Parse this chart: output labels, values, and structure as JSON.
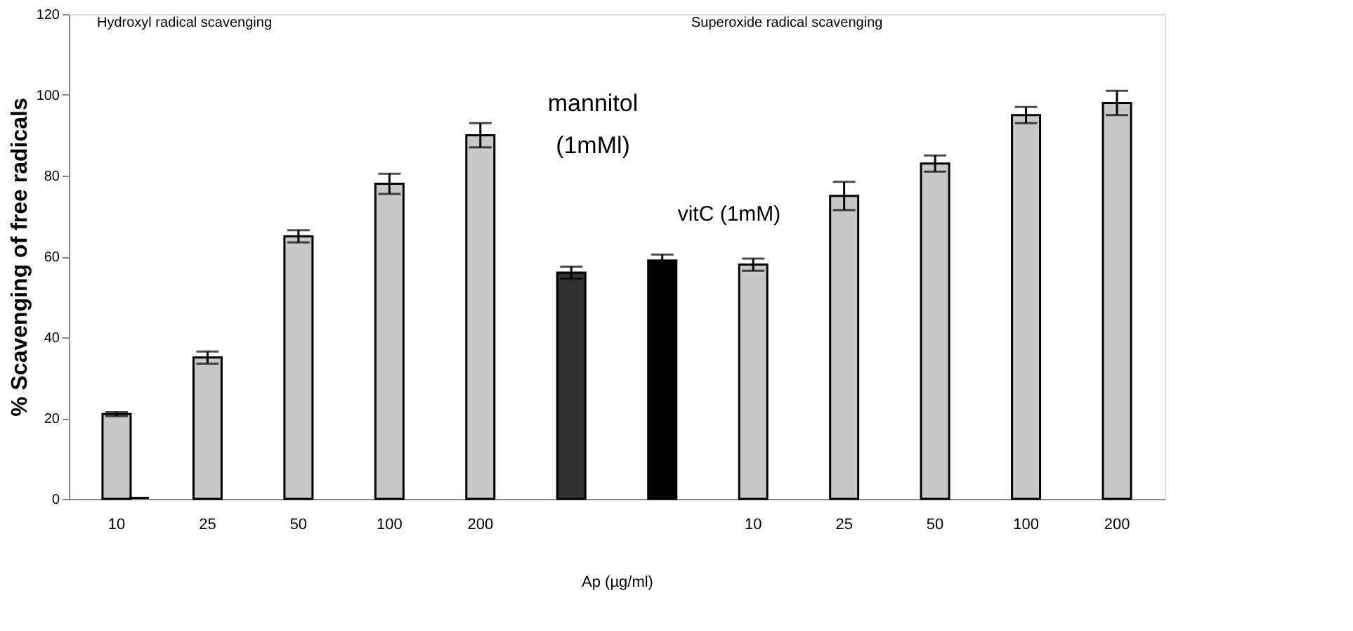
{
  "chart_data": {
    "type": "bar",
    "ylabel": "% Scavenging of free radicals",
    "xlabel": "Ap (µg/ml)",
    "categories": [
      "10",
      "25",
      "50",
      "100",
      "200",
      null,
      null,
      "10",
      "25",
      "50",
      "100",
      "200"
    ],
    "series": [
      {
        "values": [
          21,
          35,
          65,
          78,
          90,
          56,
          59,
          58,
          75,
          83,
          95,
          98
        ],
        "errors": [
          0.5,
          1.5,
          1.5,
          2.5,
          3,
          1.5,
          1.5,
          1.5,
          3.5,
          2,
          2,
          3
        ],
        "colors": [
          "#c8c8c8",
          "#c8c8c8",
          "#c8c8c8",
          "#c8c8c8",
          "#c8c8c8",
          "#303030",
          "#000000",
          "#c8c8c8",
          "#c8c8c8",
          "#c8c8c8",
          "#c8c8c8",
          "#c8c8c8"
        ]
      },
      {
        "values": [
          0.5,
          null,
          null,
          null,
          null,
          null,
          null,
          null,
          null,
          null,
          null,
          null
        ],
        "color": "#000000"
      }
    ],
    "ylim": [
      0,
      120
    ],
    "yticks": [
      0,
      20,
      40,
      60,
      80,
      100,
      120
    ],
    "grid": false,
    "annotations": [
      "Hydroxyl radical scavenging",
      "Superoxide radical scavenging",
      "mannitol",
      "(1mMl)",
      "vitC (1mM)"
    ]
  }
}
